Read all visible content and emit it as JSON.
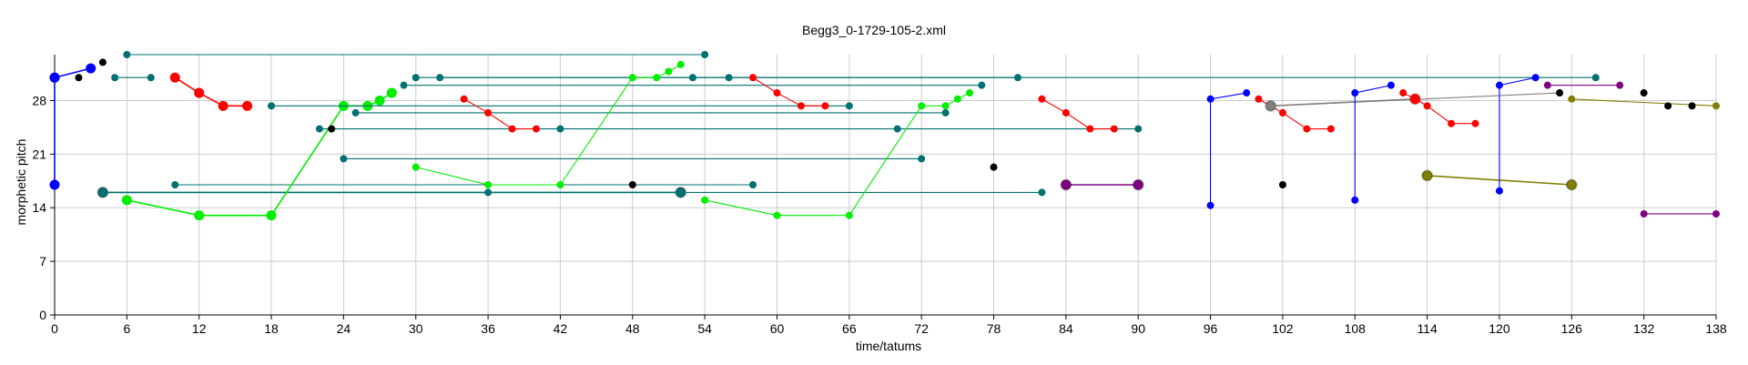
{
  "chart_data": {
    "type": "scatter",
    "title": "Begg3_0-1729-105-2.xml",
    "xlabel": "time/tatums",
    "ylabel": "morphetic pitch",
    "xlim": [
      0,
      138
    ],
    "ylim": [
      0,
      34
    ],
    "xticks": [
      0,
      6,
      12,
      18,
      24,
      30,
      36,
      42,
      48,
      54,
      60,
      66,
      72,
      78,
      84,
      90,
      96,
      102,
      108,
      114,
      120,
      126,
      132,
      138
    ],
    "yticks": [
      0,
      7,
      14,
      21,
      28
    ],
    "grid": true,
    "colors": {
      "blue": "#0000ff",
      "teal": "#007070",
      "red": "#ff0000",
      "green": "#00ee00",
      "black": "#000000",
      "purple": "#800080",
      "olive": "#808000",
      "gray": "#808080"
    },
    "series": [
      {
        "color": "blue",
        "points": [
          [
            0,
            31
          ],
          [
            3,
            32.2
          ]
        ],
        "sizes": [
          1,
          1
        ]
      },
      {
        "color": "blue",
        "points": [
          [
            0,
            31
          ],
          [
            0,
            17
          ]
        ],
        "sizes": [
          1,
          1
        ]
      },
      {
        "color": "black",
        "points": [
          [
            2,
            31
          ]
        ],
        "sizes": [
          0.6
        ]
      },
      {
        "color": "black",
        "points": [
          [
            4,
            33
          ]
        ],
        "sizes": [
          0.6
        ]
      },
      {
        "color": "teal",
        "points": [
          [
            6,
            34
          ],
          [
            54,
            34
          ]
        ],
        "sizes": [
          0.6,
          0.6
        ]
      },
      {
        "color": "teal",
        "points": [
          [
            5,
            31
          ],
          [
            8,
            31
          ]
        ],
        "sizes": [
          0.6,
          0.6
        ]
      },
      {
        "color": "red",
        "points": [
          [
            10,
            31
          ],
          [
            12,
            29
          ],
          [
            14,
            27.3
          ],
          [
            16,
            27.3
          ]
        ],
        "sizes": [
          1,
          1,
          1,
          1
        ]
      },
      {
        "color": "teal",
        "points": [
          [
            4,
            16
          ],
          [
            52,
            16
          ]
        ],
        "sizes": [
          1,
          1
        ]
      },
      {
        "color": "teal",
        "points": [
          [
            4,
            16
          ],
          [
            82,
            16
          ]
        ],
        "sizes": [
          0.6,
          0.6
        ]
      },
      {
        "color": "teal",
        "points": [
          [
            10,
            17
          ],
          [
            58,
            17
          ]
        ],
        "sizes": [
          0.6,
          0.6
        ]
      },
      {
        "color": "teal",
        "points": [
          [
            36,
            16
          ]
        ],
        "sizes": [
          0.6
        ]
      },
      {
        "color": "green",
        "points": [
          [
            6,
            15
          ],
          [
            12,
            13
          ],
          [
            18,
            13
          ],
          [
            24,
            27.3
          ],
          [
            26,
            27.3
          ],
          [
            27,
            28
          ],
          [
            28,
            29
          ]
        ],
        "sizes": [
          1,
          1,
          1,
          1,
          1,
          1,
          1
        ]
      },
      {
        "color": "teal",
        "points": [
          [
            18,
            27.3
          ],
          [
            66,
            27.3
          ]
        ],
        "sizes": [
          0.6,
          0.6
        ]
      },
      {
        "color": "teal",
        "points": [
          [
            22,
            24.3
          ],
          [
            90,
            24.3
          ]
        ],
        "sizes": [
          0.6,
          0.6
        ]
      },
      {
        "color": "black",
        "points": [
          [
            23,
            24.3
          ]
        ],
        "sizes": [
          0.6
        ]
      },
      {
        "color": "teal",
        "points": [
          [
            25,
            26.4
          ],
          [
            74,
            26.4
          ]
        ],
        "sizes": [
          0.6,
          0.6
        ]
      },
      {
        "color": "teal",
        "points": [
          [
            29,
            30
          ],
          [
            77,
            30
          ]
        ],
        "sizes": [
          0.6,
          0.6
        ]
      },
      {
        "color": "teal",
        "points": [
          [
            30,
            31
          ],
          [
            80,
            31
          ]
        ],
        "sizes": [
          0.6,
          0.6
        ]
      },
      {
        "color": "teal",
        "points": [
          [
            32,
            31
          ],
          [
            128,
            31
          ]
        ],
        "sizes": [
          0.6,
          0.6
        ]
      },
      {
        "color": "teal",
        "points": [
          [
            24,
            20.4
          ],
          [
            72,
            20.4
          ]
        ],
        "sizes": [
          0.6,
          0.6
        ]
      },
      {
        "color": "green",
        "points": [
          [
            30,
            19.3
          ],
          [
            36,
            17
          ],
          [
            42,
            17
          ],
          [
            48,
            31
          ],
          [
            50,
            31
          ],
          [
            51,
            31.8
          ],
          [
            52,
            32.7
          ]
        ],
        "sizes": [
          0.6,
          0.6,
          0.6,
          0.6,
          0.6,
          0.6,
          0.6
        ]
      },
      {
        "color": "red",
        "points": [
          [
            34,
            28.2
          ],
          [
            36,
            26.4
          ],
          [
            38,
            24.3
          ],
          [
            40,
            24.3
          ]
        ],
        "sizes": [
          0.6,
          0.6,
          0.6,
          0.6
        ]
      },
      {
        "color": "teal",
        "points": [
          [
            42,
            24.3
          ]
        ],
        "sizes": [
          0.6
        ]
      },
      {
        "color": "black",
        "points": [
          [
            48,
            17
          ]
        ],
        "sizes": [
          0.6
        ]
      },
      {
        "color": "teal",
        "points": [
          [
            53,
            31
          ]
        ],
        "sizes": [
          0.6
        ]
      },
      {
        "color": "teal",
        "points": [
          [
            56,
            31
          ]
        ],
        "sizes": [
          0.6
        ]
      },
      {
        "color": "green",
        "points": [
          [
            54,
            15
          ],
          [
            60,
            13
          ],
          [
            66,
            13
          ],
          [
            72,
            27.3
          ],
          [
            74,
            27.3
          ],
          [
            75,
            28.2
          ],
          [
            76,
            29
          ]
        ],
        "sizes": [
          0.6,
          0.6,
          0.6,
          0.6,
          0.6,
          0.6,
          0.6
        ]
      },
      {
        "color": "red",
        "points": [
          [
            58,
            31
          ],
          [
            60,
            29
          ],
          [
            62,
            27.3
          ],
          [
            64,
            27.3
          ]
        ],
        "sizes": [
          0.6,
          0.6,
          0.6,
          0.6
        ]
      },
      {
        "color": "teal",
        "points": [
          [
            70,
            24.3
          ]
        ],
        "sizes": [
          0.6
        ]
      },
      {
        "color": "black",
        "points": [
          [
            78,
            19.3
          ]
        ],
        "sizes": [
          0.6
        ]
      },
      {
        "color": "red",
        "points": [
          [
            82,
            28.2
          ],
          [
            84,
            26.4
          ],
          [
            86,
            24.3
          ],
          [
            88,
            24.3
          ]
        ],
        "sizes": [
          0.6,
          0.6,
          0.6,
          0.6
        ]
      },
      {
        "color": "purple",
        "points": [
          [
            84,
            17
          ],
          [
            90,
            17
          ]
        ],
        "sizes": [
          1,
          1
        ]
      },
      {
        "color": "blue",
        "points": [
          [
            96,
            14.3
          ],
          [
            96,
            28.2
          ],
          [
            99,
            29
          ]
        ],
        "sizes": [
          0.6,
          0.6,
          0.6
        ]
      },
      {
        "color": "red",
        "points": [
          [
            100,
            28.2
          ],
          [
            101,
            27.3
          ],
          [
            102,
            26.4
          ],
          [
            104,
            24.3
          ],
          [
            106,
            24.3
          ]
        ],
        "sizes": [
          0.6,
          0.6,
          0.6,
          0.6,
          0.6
        ]
      },
      {
        "color": "gray",
        "points": [
          [
            101,
            27.3
          ],
          [
            113,
            28.2
          ]
        ],
        "sizes": [
          1,
          1
        ]
      },
      {
        "color": "gray",
        "points": [
          [
            101,
            27.3
          ],
          [
            125,
            29
          ]
        ],
        "sizes": [
          0.6,
          0.6
        ]
      },
      {
        "color": "black",
        "points": [
          [
            102,
            17
          ]
        ],
        "sizes": [
          0.6
        ]
      },
      {
        "color": "blue",
        "points": [
          [
            108,
            15
          ],
          [
            108,
            29
          ],
          [
            111,
            30
          ]
        ],
        "sizes": [
          0.6,
          0.6,
          0.6
        ]
      },
      {
        "color": "red",
        "points": [
          [
            112,
            29
          ],
          [
            113,
            28.2
          ],
          [
            114,
            27.3
          ],
          [
            116,
            25
          ],
          [
            118,
            25
          ]
        ],
        "sizes": [
          0.6,
          1,
          0.6,
          0.6,
          0.6
        ]
      },
      {
        "color": "olive",
        "points": [
          [
            114,
            18.2
          ],
          [
            126,
            17
          ]
        ],
        "sizes": [
          1,
          1
        ]
      },
      {
        "color": "blue",
        "points": [
          [
            120,
            16.2
          ],
          [
            120,
            30
          ],
          [
            123,
            31
          ]
        ],
        "sizes": [
          0.6,
          0.6,
          0.6
        ]
      },
      {
        "color": "purple",
        "points": [
          [
            124,
            30
          ],
          [
            130,
            30
          ]
        ],
        "sizes": [
          0.6,
          0.6
        ]
      },
      {
        "color": "black",
        "points": [
          [
            125,
            29
          ]
        ],
        "sizes": [
          0.6
        ]
      },
      {
        "color": "olive",
        "points": [
          [
            126,
            28.2
          ],
          [
            138,
            27.3
          ]
        ],
        "sizes": [
          0.6,
          0.6
        ]
      },
      {
        "color": "black",
        "points": [
          [
            132,
            29
          ]
        ],
        "sizes": [
          0.6
        ]
      },
      {
        "color": "black",
        "points": [
          [
            134,
            27.3
          ]
        ],
        "sizes": [
          0.6
        ]
      },
      {
        "color": "black",
        "points": [
          [
            136,
            27.3
          ]
        ],
        "sizes": [
          0.6
        ]
      },
      {
        "color": "purple",
        "points": [
          [
            132,
            13.2
          ],
          [
            138,
            13.2
          ]
        ],
        "sizes": [
          0.6,
          0.6
        ]
      }
    ]
  }
}
